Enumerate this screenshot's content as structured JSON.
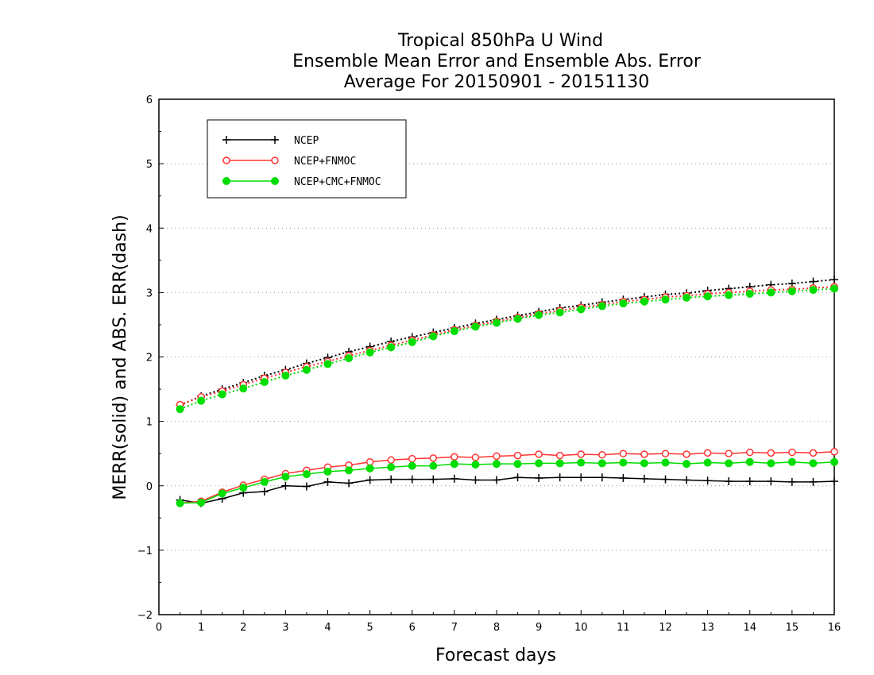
{
  "chart_data": {
    "type": "line",
    "title": [
      "Tropical 850hPa U Wind",
      "Ensemble Mean Error and Ensemble Abs. Error",
      "Average For 20150901 - 20151130"
    ],
    "xlabel": "Forecast days",
    "ylabel": "MERR(solid) and ABS. ERR(dash)",
    "xlim": [
      0,
      16
    ],
    "ylim": [
      -2,
      6
    ],
    "x_ticks": [
      "0",
      "1",
      "2",
      "3",
      "4",
      "5",
      "6",
      "7",
      "8",
      "9",
      "10",
      "11",
      "12",
      "13",
      "14",
      "15",
      "16"
    ],
    "y_ticks": [
      "−2",
      "−1",
      "0",
      "1",
      "2",
      "3",
      "4",
      "5",
      "6"
    ],
    "grid": "horizontal dotted",
    "legend_position": "top-left",
    "x": [
      0.5,
      1,
      1.5,
      2,
      2.5,
      3,
      3.5,
      4,
      4.5,
      5,
      5.5,
      6,
      6.5,
      7,
      7.5,
      8,
      8.5,
      9,
      9.5,
      10,
      10.5,
      11,
      11.5,
      12,
      12.5,
      13,
      13.5,
      14,
      14.5,
      15,
      15.5,
      16
    ],
    "series": [
      {
        "name": "NCEP",
        "color": "#000000",
        "marker": "plus",
        "merr": [
          -0.22,
          -0.27,
          -0.2,
          -0.11,
          -0.09,
          0.0,
          -0.01,
          0.06,
          0.04,
          0.09,
          0.1,
          0.1,
          0.1,
          0.11,
          0.09,
          0.09,
          0.13,
          0.12,
          0.13,
          0.13,
          0.13,
          0.12,
          0.11,
          0.1,
          0.09,
          0.08,
          0.07,
          0.07,
          0.07,
          0.06,
          0.06,
          0.07
        ],
        "abs_err": [
          1.25,
          1.39,
          1.5,
          1.6,
          1.71,
          1.8,
          1.9,
          1.99,
          2.08,
          2.16,
          2.24,
          2.31,
          2.38,
          2.45,
          2.52,
          2.58,
          2.64,
          2.7,
          2.76,
          2.8,
          2.85,
          2.89,
          2.93,
          2.97,
          2.99,
          3.03,
          3.06,
          3.09,
          3.12,
          3.14,
          3.17,
          3.2
        ]
      },
      {
        "name": "NCEP+FNMOC",
        "color": "#ff3333",
        "marker": "open-circle",
        "merr": [
          -0.27,
          -0.24,
          -0.1,
          0.01,
          0.1,
          0.19,
          0.24,
          0.29,
          0.32,
          0.37,
          0.4,
          0.42,
          0.43,
          0.45,
          0.44,
          0.46,
          0.47,
          0.49,
          0.47,
          0.49,
          0.48,
          0.5,
          0.49,
          0.5,
          0.49,
          0.51,
          0.5,
          0.52,
          0.51,
          0.52,
          0.51,
          0.53
        ],
        "abs_err": [
          1.26,
          1.38,
          1.47,
          1.57,
          1.67,
          1.76,
          1.85,
          1.93,
          2.02,
          2.1,
          2.18,
          2.26,
          2.34,
          2.42,
          2.49,
          2.55,
          2.61,
          2.67,
          2.72,
          2.77,
          2.81,
          2.86,
          2.89,
          2.93,
          2.95,
          2.98,
          3.0,
          3.02,
          3.04,
          3.05,
          3.07,
          3.09
        ]
      },
      {
        "name": "NCEP+CMC+FNMOC",
        "color": "#00dd00",
        "marker": "filled-circle",
        "merr": [
          -0.27,
          -0.26,
          -0.12,
          -0.03,
          0.06,
          0.14,
          0.18,
          0.22,
          0.24,
          0.27,
          0.29,
          0.31,
          0.31,
          0.34,
          0.33,
          0.34,
          0.34,
          0.35,
          0.35,
          0.36,
          0.35,
          0.36,
          0.35,
          0.36,
          0.34,
          0.36,
          0.35,
          0.37,
          0.35,
          0.37,
          0.35,
          0.37
        ],
        "abs_err": [
          1.19,
          1.32,
          1.42,
          1.51,
          1.61,
          1.71,
          1.8,
          1.89,
          1.98,
          2.07,
          2.15,
          2.23,
          2.32,
          2.4,
          2.47,
          2.53,
          2.59,
          2.65,
          2.69,
          2.74,
          2.79,
          2.83,
          2.86,
          2.89,
          2.92,
          2.94,
          2.96,
          2.98,
          3.0,
          3.02,
          3.04,
          3.06
        ]
      }
    ]
  }
}
